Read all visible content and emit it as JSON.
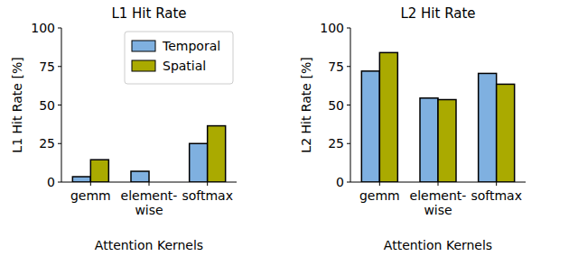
{
  "chart_data": [
    {
      "type": "bar",
      "title": "L1 Hit Rate",
      "y_label": "L1 Hit Rate [%]",
      "x_label": "Attention Kernels",
      "categories": [
        "gemm",
        "element-\nwise",
        "softmax"
      ],
      "series": [
        {
          "name": "Temporal",
          "color": "#7fb0e0",
          "values": [
            3.5,
            7,
            25
          ]
        },
        {
          "name": "Spatial",
          "color": "#aaaa00",
          "values": [
            14.5,
            0,
            36.5
          ]
        }
      ],
      "ylim": [
        0,
        100
      ],
      "yticks": [
        0,
        25,
        50,
        75,
        100
      ],
      "legend": "upper right"
    },
    {
      "type": "bar",
      "title": "L2 Hit Rate",
      "y_label": "L2 Hit Rate [%]",
      "x_label": "Attention Kernels",
      "categories": [
        "gemm",
        "element-\nwise",
        "softmax"
      ],
      "series": [
        {
          "color": "#7fb0e0",
          "values": [
            72,
            54.5,
            70.5
          ]
        },
        {
          "color": "#aaaa00",
          "values": [
            84,
            53.5,
            63.5
          ]
        }
      ],
      "ylim": [
        0,
        100
      ],
      "yticks": [
        0,
        25,
        50,
        75,
        100
      ]
    }
  ]
}
